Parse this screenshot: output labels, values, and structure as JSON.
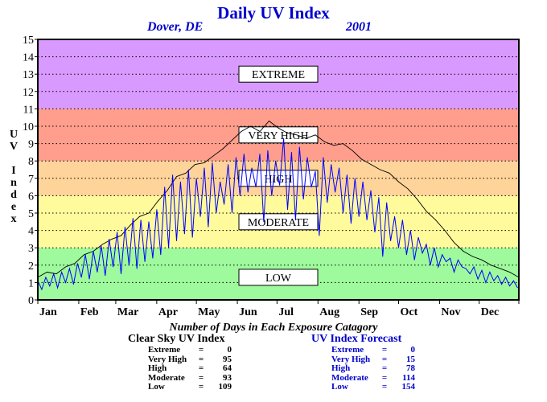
{
  "header": {
    "title": "Daily UV Index",
    "location": "Dover, DE",
    "year": "2001"
  },
  "colors": {
    "extreme": "#d99aff",
    "very_high": "#ff9e8c",
    "high": "#ffd49a",
    "moderate": "#fffa9c",
    "low": "#9efa9c",
    "clear_sky_line": "#000000",
    "forecast_line": "#0000ff",
    "title": "#0000cc"
  },
  "chart_data": {
    "type": "line",
    "title": "Daily UV Index",
    "ylabel": "UV Index",
    "xlabel": "",
    "ylim": [
      0,
      15
    ],
    "yticks": [
      0,
      1,
      2,
      3,
      4,
      5,
      6,
      7,
      8,
      9,
      10,
      11,
      12,
      13,
      14,
      15
    ],
    "x_tick_labels": [
      "Jan",
      "Feb",
      "Mar",
      "Apr",
      "May",
      "Jun",
      "Jul",
      "Aug",
      "Sep",
      "Oct",
      "Nov",
      "Dec"
    ],
    "grid": "horizontal dotted",
    "bands": [
      {
        "label": "LOW",
        "from": 0,
        "to": 3
      },
      {
        "label": "MODERATE",
        "from": 3,
        "to": 6
      },
      {
        "label": "HIGH",
        "from": 6,
        "to": 8
      },
      {
        "label": "VERY HIGH",
        "from": 8,
        "to": 11
      },
      {
        "label": "EXTREME",
        "from": 11,
        "to": 15
      }
    ],
    "series": [
      {
        "legend": "",
        "style": "clear sky",
        "x_day": [
          1,
          8,
          15,
          22,
          29,
          36,
          43,
          50,
          57,
          64,
          71,
          78,
          85,
          92,
          99,
          106,
          113,
          120,
          127,
          134,
          141,
          148,
          155,
          162,
          169,
          176,
          183,
          190,
          197,
          204,
          211,
          218,
          225,
          232,
          239,
          246,
          253,
          260,
          267,
          274,
          281,
          288,
          295,
          302,
          309,
          316,
          323,
          330,
          337,
          344,
          351,
          358,
          365
        ],
        "values": [
          1.3,
          1.6,
          1.5,
          1.9,
          2.1,
          2.6,
          2.8,
          3.2,
          3.5,
          3.7,
          4.3,
          4.8,
          5.0,
          5.7,
          6.3,
          7.1,
          7.3,
          7.8,
          7.9,
          8.3,
          8.7,
          9.2,
          9.7,
          10.0,
          9.7,
          10.3,
          9.9,
          9.6,
          9.5,
          9.3,
          9.5,
          9.1,
          8.9,
          9.0,
          8.6,
          8.1,
          7.8,
          7.5,
          7.3,
          6.8,
          6.4,
          5.8,
          5.1,
          4.6,
          4.0,
          3.3,
          2.8,
          2.5,
          2.3,
          2.0,
          1.8,
          1.6,
          1.3
        ]
      },
      {
        "legend": "",
        "style": "forecast",
        "x_day": [
          1,
          4,
          7,
          10,
          13,
          16,
          19,
          22,
          25,
          28,
          31,
          34,
          37,
          40,
          43,
          46,
          49,
          52,
          55,
          58,
          61,
          64,
          67,
          70,
          73,
          76,
          79,
          82,
          85,
          88,
          91,
          94,
          97,
          100,
          103,
          106,
          109,
          112,
          115,
          118,
          121,
          124,
          127,
          130,
          133,
          136,
          139,
          142,
          145,
          148,
          151,
          154,
          157,
          160,
          163,
          166,
          169,
          172,
          175,
          178,
          181,
          184,
          187,
          190,
          193,
          196,
          199,
          202,
          205,
          208,
          211,
          214,
          217,
          220,
          223,
          226,
          229,
          232,
          235,
          238,
          241,
          244,
          247,
          250,
          253,
          256,
          259,
          262,
          265,
          268,
          271,
          274,
          277,
          280,
          283,
          286,
          289,
          292,
          295,
          298,
          301,
          304,
          307,
          310,
          313,
          316,
          319,
          322,
          325,
          328,
          331,
          334,
          337,
          340,
          343,
          346,
          349,
          352,
          355,
          358,
          361,
          364
        ],
        "values": [
          1.1,
          0.6,
          1.3,
          0.8,
          1.5,
          0.7,
          1.6,
          1.0,
          1.8,
          0.9,
          2.1,
          1.3,
          2.6,
          1.2,
          2.8,
          1.6,
          3.1,
          1.4,
          3.5,
          1.9,
          3.9,
          1.5,
          4.2,
          2.0,
          4.7,
          1.8,
          4.6,
          2.2,
          4.5,
          2.4,
          5.2,
          2.6,
          6.5,
          3.0,
          7.2,
          3.4,
          6.8,
          3.8,
          7.5,
          3.6,
          7.0,
          4.8,
          7.6,
          4.2,
          7.9,
          5.0,
          6.8,
          5.5,
          7.8,
          5.0,
          8.2,
          6.0,
          8.4,
          6.2,
          7.6,
          6.5,
          8.4,
          4.5,
          8.6,
          6.0,
          8.0,
          6.6,
          9.3,
          5.2,
          8.5,
          4.6,
          8.8,
          5.8,
          8.2,
          6.5,
          7.4,
          3.7,
          8.2,
          5.6,
          7.8,
          6.2,
          7.6,
          5.0,
          7.2,
          4.4,
          7.0,
          4.8,
          6.8,
          4.6,
          6.3,
          3.9,
          5.9,
          2.5,
          5.6,
          3.4,
          4.8,
          3.0,
          4.6,
          2.6,
          4.0,
          2.3,
          3.6,
          2.7,
          3.2,
          2.0,
          3.0,
          1.9,
          2.6,
          2.2,
          2.4,
          1.6,
          2.3,
          1.9,
          1.8,
          1.5,
          1.9,
          1.2,
          1.7,
          1.0,
          1.6,
          1.1,
          1.4,
          0.9,
          1.3,
          0.8,
          1.1,
          0.7
        ]
      }
    ]
  },
  "days": {
    "title": "Number of Days in Each Exposure Catagory",
    "clear_sky": {
      "heading": "Clear Sky UV Index",
      "rows": [
        {
          "label": "Extreme",
          "value": "0"
        },
        {
          "label": "Very High",
          "value": "95"
        },
        {
          "label": "High",
          "value": "64"
        },
        {
          "label": "Moderate",
          "value": "93"
        },
        {
          "label": "Low",
          "value": "109"
        }
      ]
    },
    "forecast": {
      "heading": "UV Index Forecast",
      "rows": [
        {
          "label": "Extreme",
          "value": "0"
        },
        {
          "label": "Very High",
          "value": "15"
        },
        {
          "label": "High",
          "value": "78"
        },
        {
          "label": "Moderate",
          "value": "114"
        },
        {
          "label": "Low",
          "value": "154"
        }
      ]
    }
  }
}
